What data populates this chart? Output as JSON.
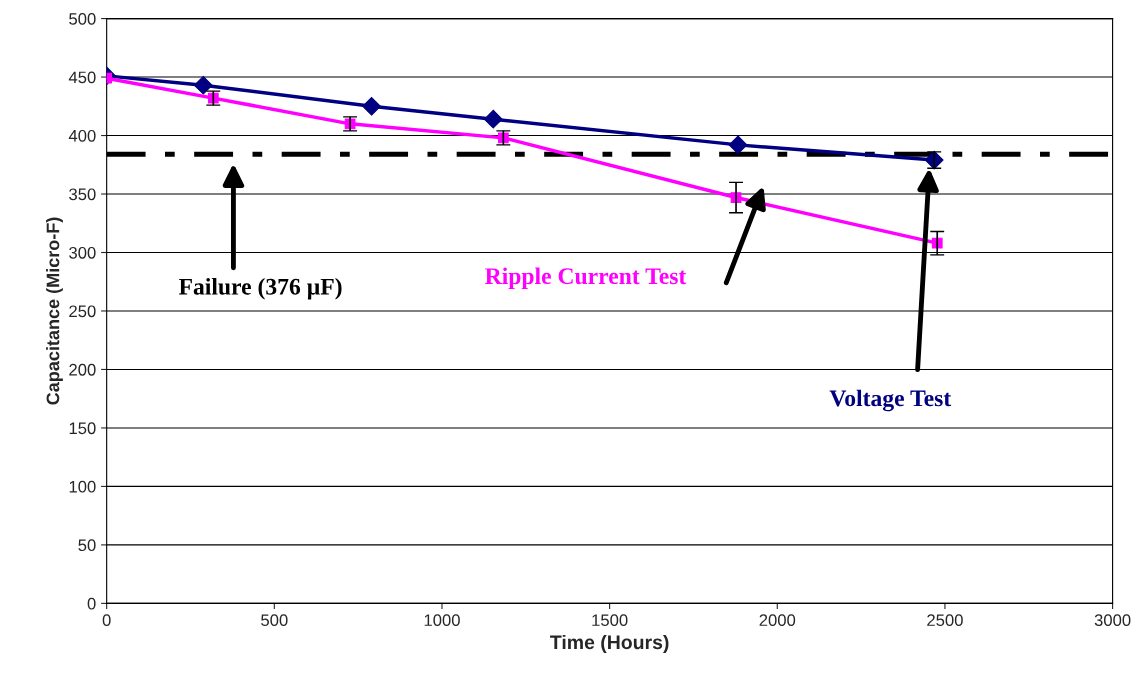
{
  "chart_data": {
    "type": "line",
    "xlabel": "Time (Hours)",
    "ylabel": "Capacitance (Micro-F)",
    "xlim": [
      0,
      3000
    ],
    "xticks": [
      0,
      500,
      1000,
      1500,
      2000,
      2500,
      3000
    ],
    "ylim": [
      0,
      500
    ],
    "yticks": [
      0,
      50,
      100,
      150,
      200,
      250,
      300,
      350,
      400,
      450,
      500
    ],
    "grid": "y",
    "legend": false,
    "series": [
      {
        "color": "#000080",
        "marker": "diamond",
        "x": [
          0,
          288,
          790,
          1153,
          1883,
          2468
        ],
        "values": [
          451,
          443,
          425,
          414,
          392,
          379
        ],
        "errors": [
          null,
          null,
          null,
          null,
          null,
          7
        ]
      },
      {
        "color": "#ff00ff",
        "marker": "square",
        "x": [
          0,
          318,
          726,
          1183,
          1877,
          2477
        ],
        "values": [
          449,
          432,
          410,
          398,
          347,
          308
        ],
        "errors": [
          null,
          6,
          6,
          6,
          13,
          10
        ]
      }
    ],
    "ref_lines": [
      {
        "axis": "y",
        "value": 384,
        "color": "#000000",
        "line_style": "dashdot"
      }
    ],
    "annotations": [
      "Failure (376 µF)",
      "Ripple Current Test",
      "Voltage Test"
    ]
  }
}
